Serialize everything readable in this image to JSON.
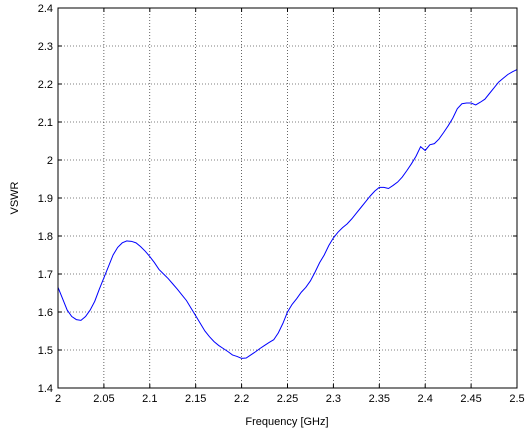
{
  "chart_data": {
    "type": "line",
    "title": "",
    "xlabel": "Frequency [GHz]",
    "ylabel": "VSWR",
    "xlim": [
      2,
      2.5
    ],
    "ylim": [
      1.4,
      2.4
    ],
    "grid": true,
    "x_ticks": [
      "2",
      "2.05",
      "2.1",
      "2.15",
      "2.2",
      "2.25",
      "2.3",
      "2.35",
      "2.4",
      "2.45",
      "2.5"
    ],
    "y_ticks": [
      "1.4",
      "1.5",
      "1.6",
      "1.7",
      "1.8",
      "1.9",
      "2",
      "2.1",
      "2.2",
      "2.3",
      "2.4"
    ],
    "line_color": "#0000ff",
    "series": [
      {
        "x": [
          2.0,
          2.005,
          2.01,
          2.015,
          2.02,
          2.025,
          2.03,
          2.035,
          2.04,
          2.045,
          2.05,
          2.055,
          2.06,
          2.065,
          2.07,
          2.075,
          2.08,
          2.085,
          2.09,
          2.095,
          2.1,
          2.105,
          2.11,
          2.115,
          2.12,
          2.125,
          2.13,
          2.135,
          2.14,
          2.145,
          2.15,
          2.155,
          2.16,
          2.165,
          2.17,
          2.175,
          2.18,
          2.185,
          2.19,
          2.195,
          2.2,
          2.205,
          2.21,
          2.215,
          2.22,
          2.225,
          2.23,
          2.235,
          2.24,
          2.245,
          2.25,
          2.255,
          2.26,
          2.265,
          2.27,
          2.275,
          2.28,
          2.285,
          2.29,
          2.295,
          2.3,
          2.305,
          2.31,
          2.315,
          2.32,
          2.325,
          2.33,
          2.335,
          2.34,
          2.345,
          2.35,
          2.355,
          2.36,
          2.365,
          2.37,
          2.375,
          2.38,
          2.385,
          2.39,
          2.395,
          2.4,
          2.405,
          2.41,
          2.415,
          2.42,
          2.425,
          2.43,
          2.435,
          2.44,
          2.445,
          2.45,
          2.455,
          2.46,
          2.465,
          2.47,
          2.475,
          2.48,
          2.485,
          2.49,
          2.495,
          2.5
        ],
        "y": [
          1.665,
          1.635,
          1.605,
          1.588,
          1.58,
          1.578,
          1.588,
          1.605,
          1.628,
          1.66,
          1.69,
          1.72,
          1.75,
          1.77,
          1.782,
          1.787,
          1.786,
          1.782,
          1.772,
          1.76,
          1.746,
          1.73,
          1.712,
          1.7,
          1.688,
          1.674,
          1.66,
          1.645,
          1.63,
          1.61,
          1.59,
          1.57,
          1.55,
          1.535,
          1.522,
          1.512,
          1.504,
          1.496,
          1.487,
          1.483,
          1.478,
          1.479,
          1.487,
          1.495,
          1.504,
          1.512,
          1.52,
          1.527,
          1.545,
          1.57,
          1.6,
          1.62,
          1.635,
          1.652,
          1.665,
          1.682,
          1.705,
          1.73,
          1.75,
          1.775,
          1.795,
          1.81,
          1.822,
          1.832,
          1.845,
          1.86,
          1.875,
          1.89,
          1.905,
          1.918,
          1.928,
          1.928,
          1.925,
          1.933,
          1.942,
          1.955,
          1.972,
          1.99,
          2.01,
          2.035,
          2.025,
          2.04,
          2.043,
          2.055,
          2.072,
          2.09,
          2.11,
          2.135,
          2.148,
          2.15,
          2.15,
          2.145,
          2.152,
          2.16,
          2.175,
          2.19,
          2.205,
          2.215,
          2.225,
          2.232,
          2.238
        ]
      }
    ]
  }
}
